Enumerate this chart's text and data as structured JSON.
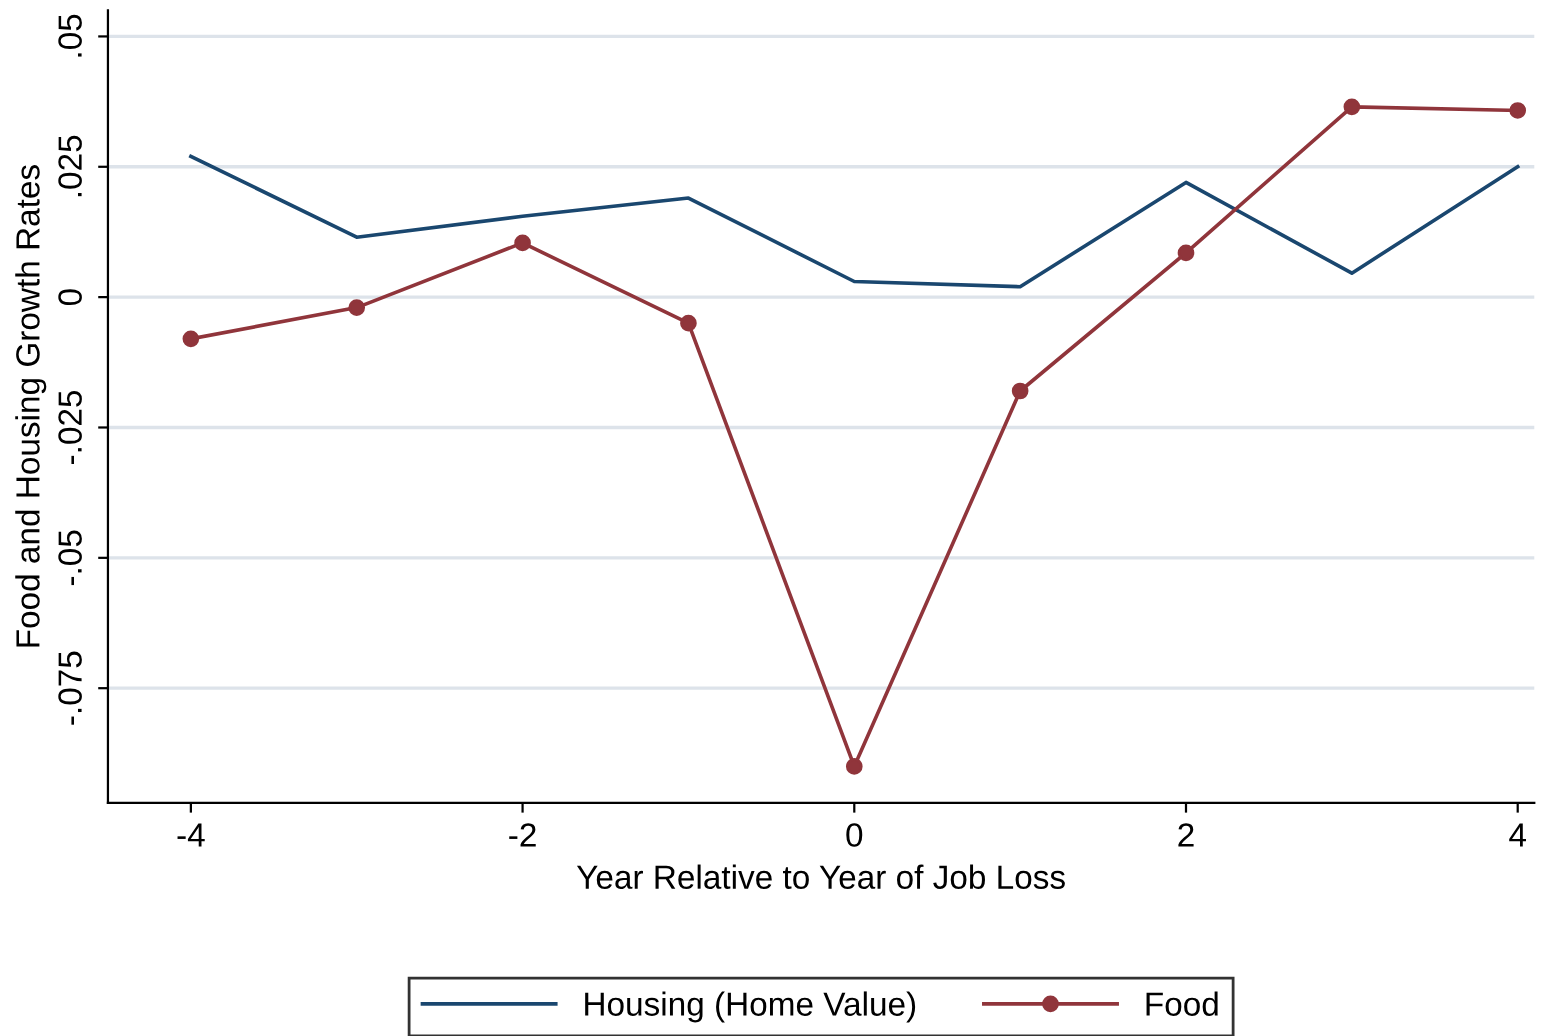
{
  "chart_data": {
    "type": "line",
    "xlabel": "Year Relative to Year of Job Loss",
    "ylabel": "Food and Housing Growth Rates",
    "x": [
      -4,
      -3,
      -2,
      -1,
      0,
      1,
      2,
      3,
      4
    ],
    "series": [
      {
        "name": "Housing (Home Value)",
        "color": "#1a476f",
        "marker": "none",
        "values": [
          0.027,
          0.0115,
          0.0155,
          0.019,
          0.003,
          0.002,
          0.022,
          0.0046,
          0.025
        ]
      },
      {
        "name": "Food",
        "color": "#90353b",
        "marker": "circle",
        "values": [
          -0.008,
          -0.002,
          0.0104,
          -0.005,
          -0.09,
          -0.018,
          0.0085,
          0.0365,
          0.0358
        ]
      }
    ],
    "xlim": [
      -4.5,
      4.1
    ],
    "xticks": [
      -4,
      -2,
      0,
      2,
      4
    ],
    "ylim": [
      -0.097,
      0.055
    ],
    "yticks": [
      {
        "value": -0.075,
        "label": "-.075"
      },
      {
        "value": -0.05,
        "label": "-.05"
      },
      {
        "value": -0.025,
        "label": "-.025"
      },
      {
        "value": 0,
        "label": "0"
      },
      {
        "value": 0.025,
        "label": ".025"
      },
      {
        "value": 0.05,
        "label": ".05"
      }
    ],
    "grid": "y",
    "legend": "bottom",
    "line_style": "solid"
  }
}
